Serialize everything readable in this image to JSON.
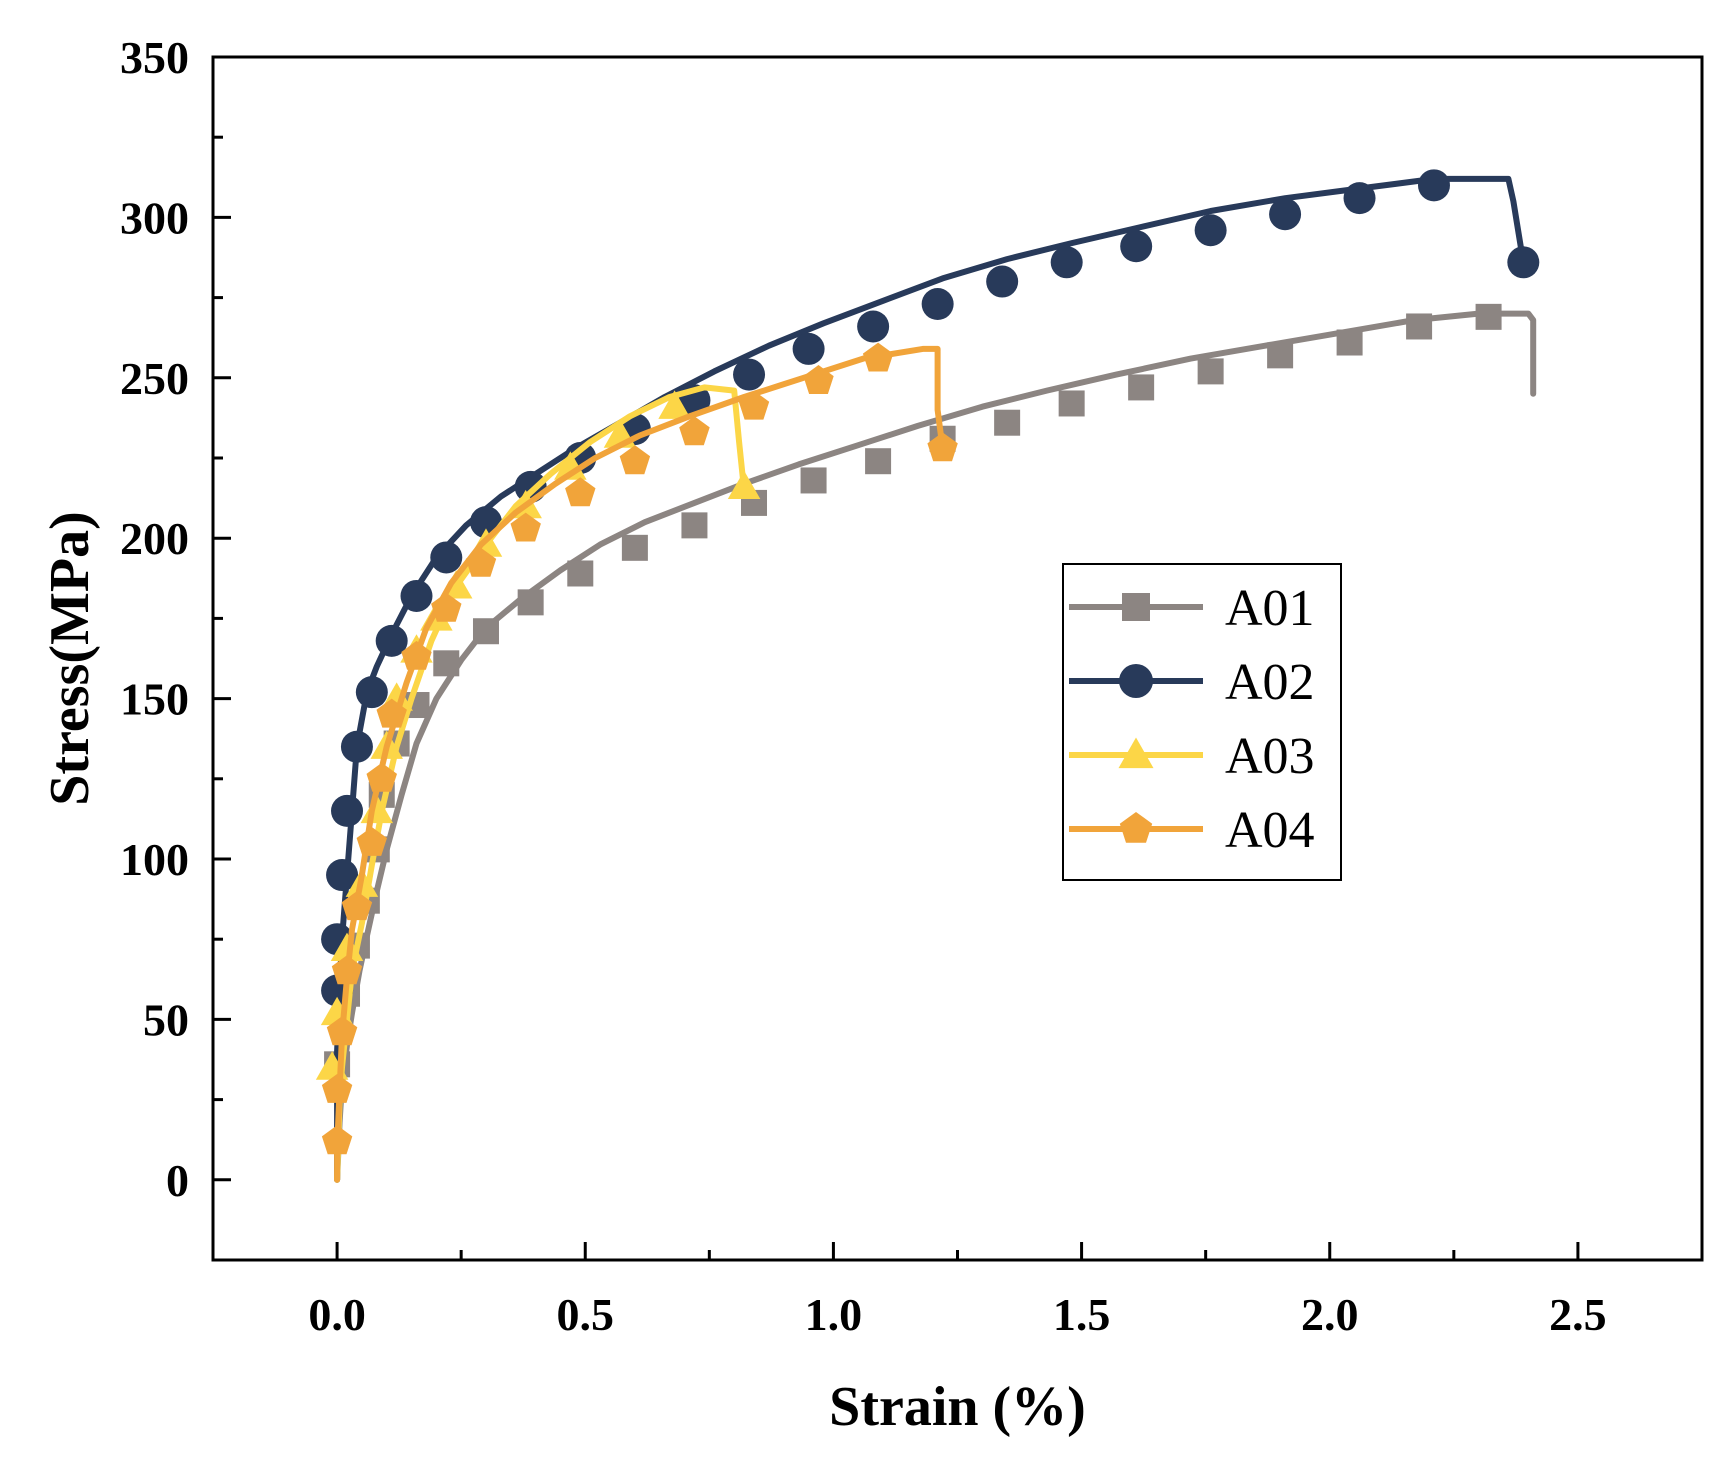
{
  "chart_data": {
    "type": "line",
    "title": "",
    "xlabel": "Strain (%)",
    "ylabel": "Stress(MPa)",
    "xlim": [
      -0.25,
      2.75
    ],
    "ylim": [
      -25,
      350
    ],
    "x_ticks": [
      0.0,
      0.5,
      1.0,
      1.5,
      2.0,
      2.5
    ],
    "x_tick_labels": [
      "0.0",
      "0.5",
      "1.0",
      "1.5",
      "2.0",
      "2.5"
    ],
    "y_ticks": [
      0,
      50,
      100,
      150,
      200,
      250,
      300,
      350
    ],
    "y_tick_labels": [
      "0",
      "50",
      "100",
      "150",
      "200",
      "250",
      "300",
      "350"
    ],
    "grid": false,
    "legend_position": "center-right",
    "series": [
      {
        "name": "A01",
        "color": "#8c8582",
        "marker": "square",
        "x": [
          0.0,
          0.005,
          0.01,
          0.02,
          0.03,
          0.045,
          0.06,
          0.08,
          0.1,
          0.13,
          0.16,
          0.2,
          0.25,
          0.3,
          0.37,
          0.45,
          0.53,
          0.62,
          0.72,
          0.82,
          0.93,
          1.05,
          1.17,
          1.3,
          1.43,
          1.57,
          1.72,
          1.87,
          2.02,
          2.17,
          2.3,
          2.4,
          2.41,
          2.41
        ],
        "y": [
          0,
          18,
          30,
          42,
          52,
          65,
          76,
          90,
          103,
          120,
          136,
          150,
          162,
          172,
          181,
          190,
          198,
          205,
          211,
          217,
          223,
          229,
          235,
          241,
          246,
          251,
          256,
          260,
          264,
          268,
          270,
          270,
          268,
          245
        ],
        "markers": [
          [
            0.0,
            36
          ],
          [
            0.02,
            58
          ],
          [
            0.04,
            73
          ],
          [
            0.06,
            87
          ],
          [
            0.08,
            103
          ],
          [
            0.09,
            120
          ],
          [
            0.12,
            136
          ],
          [
            0.16,
            148
          ],
          [
            0.22,
            161
          ],
          [
            0.3,
            171
          ],
          [
            0.39,
            180
          ],
          [
            0.49,
            189
          ],
          [
            0.6,
            197
          ],
          [
            0.72,
            204
          ],
          [
            0.84,
            211
          ],
          [
            0.96,
            218
          ],
          [
            1.09,
            224
          ],
          [
            1.22,
            231
          ],
          [
            1.35,
            236
          ],
          [
            1.48,
            242
          ],
          [
            1.62,
            247
          ],
          [
            1.76,
            252
          ],
          [
            1.9,
            257
          ],
          [
            2.04,
            261
          ],
          [
            2.18,
            266
          ],
          [
            2.32,
            269
          ]
        ]
      },
      {
        "name": "A02",
        "color": "#283a5a",
        "marker": "circle",
        "x": [
          0.0,
          0.0,
          0.005,
          0.01,
          0.02,
          0.03,
          0.04,
          0.06,
          0.08,
          0.11,
          0.15,
          0.2,
          0.26,
          0.33,
          0.4,
          0.48,
          0.57,
          0.66,
          0.76,
          0.87,
          0.98,
          1.1,
          1.22,
          1.35,
          1.48,
          1.62,
          1.76,
          1.91,
          2.06,
          2.21,
          2.36,
          2.37,
          2.39
        ],
        "y": [
          0,
          40,
          60,
          75,
          95,
          115,
          135,
          152,
          160,
          170,
          182,
          194,
          204,
          213,
          220,
          228,
          236,
          244,
          252,
          260,
          267,
          274,
          281,
          287,
          292,
          297,
          302,
          306,
          309,
          312,
          312,
          305,
          286
        ],
        "markers": [
          [
            0.0,
            59
          ],
          [
            0.0,
            75
          ],
          [
            0.01,
            95
          ],
          [
            0.02,
            115
          ],
          [
            0.04,
            135
          ],
          [
            0.07,
            152
          ],
          [
            0.11,
            168
          ],
          [
            0.16,
            182
          ],
          [
            0.22,
            194
          ],
          [
            0.3,
            205
          ],
          [
            0.39,
            216
          ],
          [
            0.49,
            225
          ],
          [
            0.6,
            234
          ],
          [
            0.72,
            243
          ],
          [
            0.83,
            251
          ],
          [
            0.95,
            259
          ],
          [
            1.08,
            266
          ],
          [
            1.21,
            273
          ],
          [
            1.34,
            280
          ],
          [
            1.47,
            286
          ],
          [
            1.61,
            291
          ],
          [
            1.76,
            296
          ],
          [
            1.91,
            301
          ],
          [
            2.06,
            306
          ],
          [
            2.21,
            310
          ],
          [
            2.39,
            286
          ]
        ]
      },
      {
        "name": "A03",
        "color": "#fcd647",
        "marker": "triangle",
        "x": [
          0.0,
          0.005,
          0.01,
          0.02,
          0.03,
          0.05,
          0.07,
          0.09,
          0.12,
          0.15,
          0.19,
          0.24,
          0.3,
          0.36,
          0.43,
          0.51,
          0.59,
          0.67,
          0.74,
          0.8,
          0.81,
          0.82
        ],
        "y": [
          0,
          25,
          35,
          50,
          65,
          80,
          98,
          115,
          135,
          150,
          168,
          185,
          198,
          210,
          220,
          230,
          238,
          244,
          247,
          246,
          230,
          215
        ],
        "markers": [
          [
            -0.01,
            35
          ],
          [
            0.0,
            52
          ],
          [
            0.02,
            72
          ],
          [
            0.05,
            92
          ],
          [
            0.08,
            115
          ],
          [
            0.1,
            135
          ],
          [
            0.12,
            150
          ],
          [
            0.16,
            165
          ],
          [
            0.2,
            175
          ],
          [
            0.24,
            185
          ],
          [
            0.3,
            198
          ],
          [
            0.38,
            210
          ],
          [
            0.47,
            222
          ],
          [
            0.57,
            232
          ],
          [
            0.68,
            241
          ],
          [
            0.82,
            216
          ]
        ]
      },
      {
        "name": "A04",
        "color": "#f1a43a",
        "marker": "pentagon",
        "x": [
          0.0,
          0.0,
          0.005,
          0.01,
          0.02,
          0.03,
          0.05,
          0.07,
          0.1,
          0.14,
          0.18,
          0.23,
          0.29,
          0.36,
          0.44,
          0.52,
          0.61,
          0.71,
          0.82,
          0.94,
          1.06,
          1.18,
          1.21,
          1.21,
          1.22
        ],
        "y": [
          0,
          10,
          28,
          45,
          63,
          78,
          95,
          115,
          135,
          155,
          172,
          186,
          198,
          208,
          217,
          225,
          232,
          238,
          244,
          250,
          256,
          259,
          259,
          240,
          228
        ],
        "markers": [
          [
            0.0,
            12
          ],
          [
            0.0,
            28
          ],
          [
            0.01,
            46
          ],
          [
            0.02,
            65
          ],
          [
            0.04,
            85
          ],
          [
            0.07,
            105
          ],
          [
            0.09,
            125
          ],
          [
            0.11,
            145
          ],
          [
            0.16,
            163
          ],
          [
            0.22,
            178
          ],
          [
            0.29,
            192
          ],
          [
            0.38,
            203
          ],
          [
            0.49,
            214
          ],
          [
            0.6,
            224
          ],
          [
            0.72,
            233
          ],
          [
            0.84,
            241
          ],
          [
            0.97,
            249
          ],
          [
            1.09,
            256
          ],
          [
            1.22,
            228
          ]
        ]
      }
    ]
  }
}
